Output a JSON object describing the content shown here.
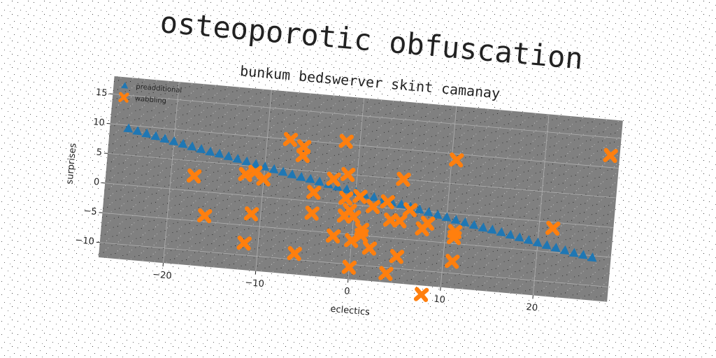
{
  "chart_data": {
    "type": "scatter",
    "title": "osteoporotic obfuscation",
    "subtitle": "bunkum bedswerver skint camanay",
    "x_label": "eclectics",
    "y_label": "surprises",
    "xlim": [
      -27,
      28
    ],
    "ylim": [
      -12.5,
      18
    ],
    "xticks": [
      {
        "value": -20,
        "label": "−20"
      },
      {
        "value": -10,
        "label": "−10"
      },
      0,
      10,
      20
    ],
    "yticks": [
      {
        "value": -10,
        "label": "−10"
      },
      {
        "value": -5,
        "label": "−5"
      },
      0,
      5,
      10,
      15
    ],
    "grid": true,
    "legend": "upper left",
    "series": [
      {
        "name": "preadditional",
        "color": "#1f77b4",
        "marker": "triangle",
        "x": [
          -25,
          -24,
          -23,
          -22,
          -21,
          -20,
          -19,
          -18,
          -17,
          -16,
          -15,
          -14,
          -13,
          -12,
          -11,
          -10,
          -9,
          -8,
          -7,
          -6,
          -5,
          -4,
          -3,
          -2,
          -1,
          0,
          1,
          2,
          3,
          4,
          5,
          6,
          7,
          8,
          9,
          10,
          11,
          12,
          13,
          14,
          15,
          16,
          17,
          18,
          19,
          20,
          21,
          22,
          23,
          24,
          25,
          26
        ],
        "values": [
          9.5,
          9.2,
          8.9,
          8.6,
          8.3,
          8.0,
          7.7,
          7.4,
          7.1,
          6.8,
          6.6,
          6.3,
          6.0,
          5.7,
          5.4,
          5.1,
          4.8,
          4.5,
          4.2,
          3.9,
          3.7,
          3.4,
          3.1,
          2.8,
          2.5,
          2.2,
          1.9,
          1.6,
          1.3,
          1.0,
          0.8,
          0.5,
          0.2,
          -0.1,
          -0.4,
          -0.7,
          -1.0,
          -1.3,
          -1.6,
          -1.9,
          -2.1,
          -2.4,
          -2.7,
          -3.0,
          -3.3,
          -3.6,
          -3.9,
          -4.2,
          -4.5,
          -4.8,
          -5.0,
          -5.3
        ]
      },
      {
        "name": "wabbling",
        "color": "#ff7f0e",
        "marker": "x",
        "x": [
          -17.5,
          -16,
          -11.5,
          -11,
          -12,
          -11,
          -10,
          -7.5,
          -6,
          -6,
          -6,
          -4.5,
          -4.5,
          -2.5,
          -2,
          -1.5,
          -1,
          -1,
          -1,
          -0.5,
          0,
          0,
          0.5,
          1,
          1,
          2,
          0,
          2,
          3.5,
          4,
          4,
          5,
          5,
          5,
          6,
          7.5,
          8,
          8,
          10.5,
          11,
          11,
          11,
          21.5,
          27
        ],
        "values": [
          2.5,
          -4,
          -8,
          -3,
          3.5,
          4,
          3,
          10,
          9,
          7.5,
          -9,
          1.5,
          -2,
          4,
          -5.5,
          10.5,
          5,
          1,
          -2,
          -1,
          -2,
          -6,
          1.5,
          -4,
          -5,
          -7,
          -10.5,
          0,
          1,
          -2,
          -11,
          -2,
          -8,
          5,
          0,
          -3,
          -2,
          -14,
          9,
          -4,
          -3,
          -8,
          -1,
          12
        ]
      }
    ]
  }
}
